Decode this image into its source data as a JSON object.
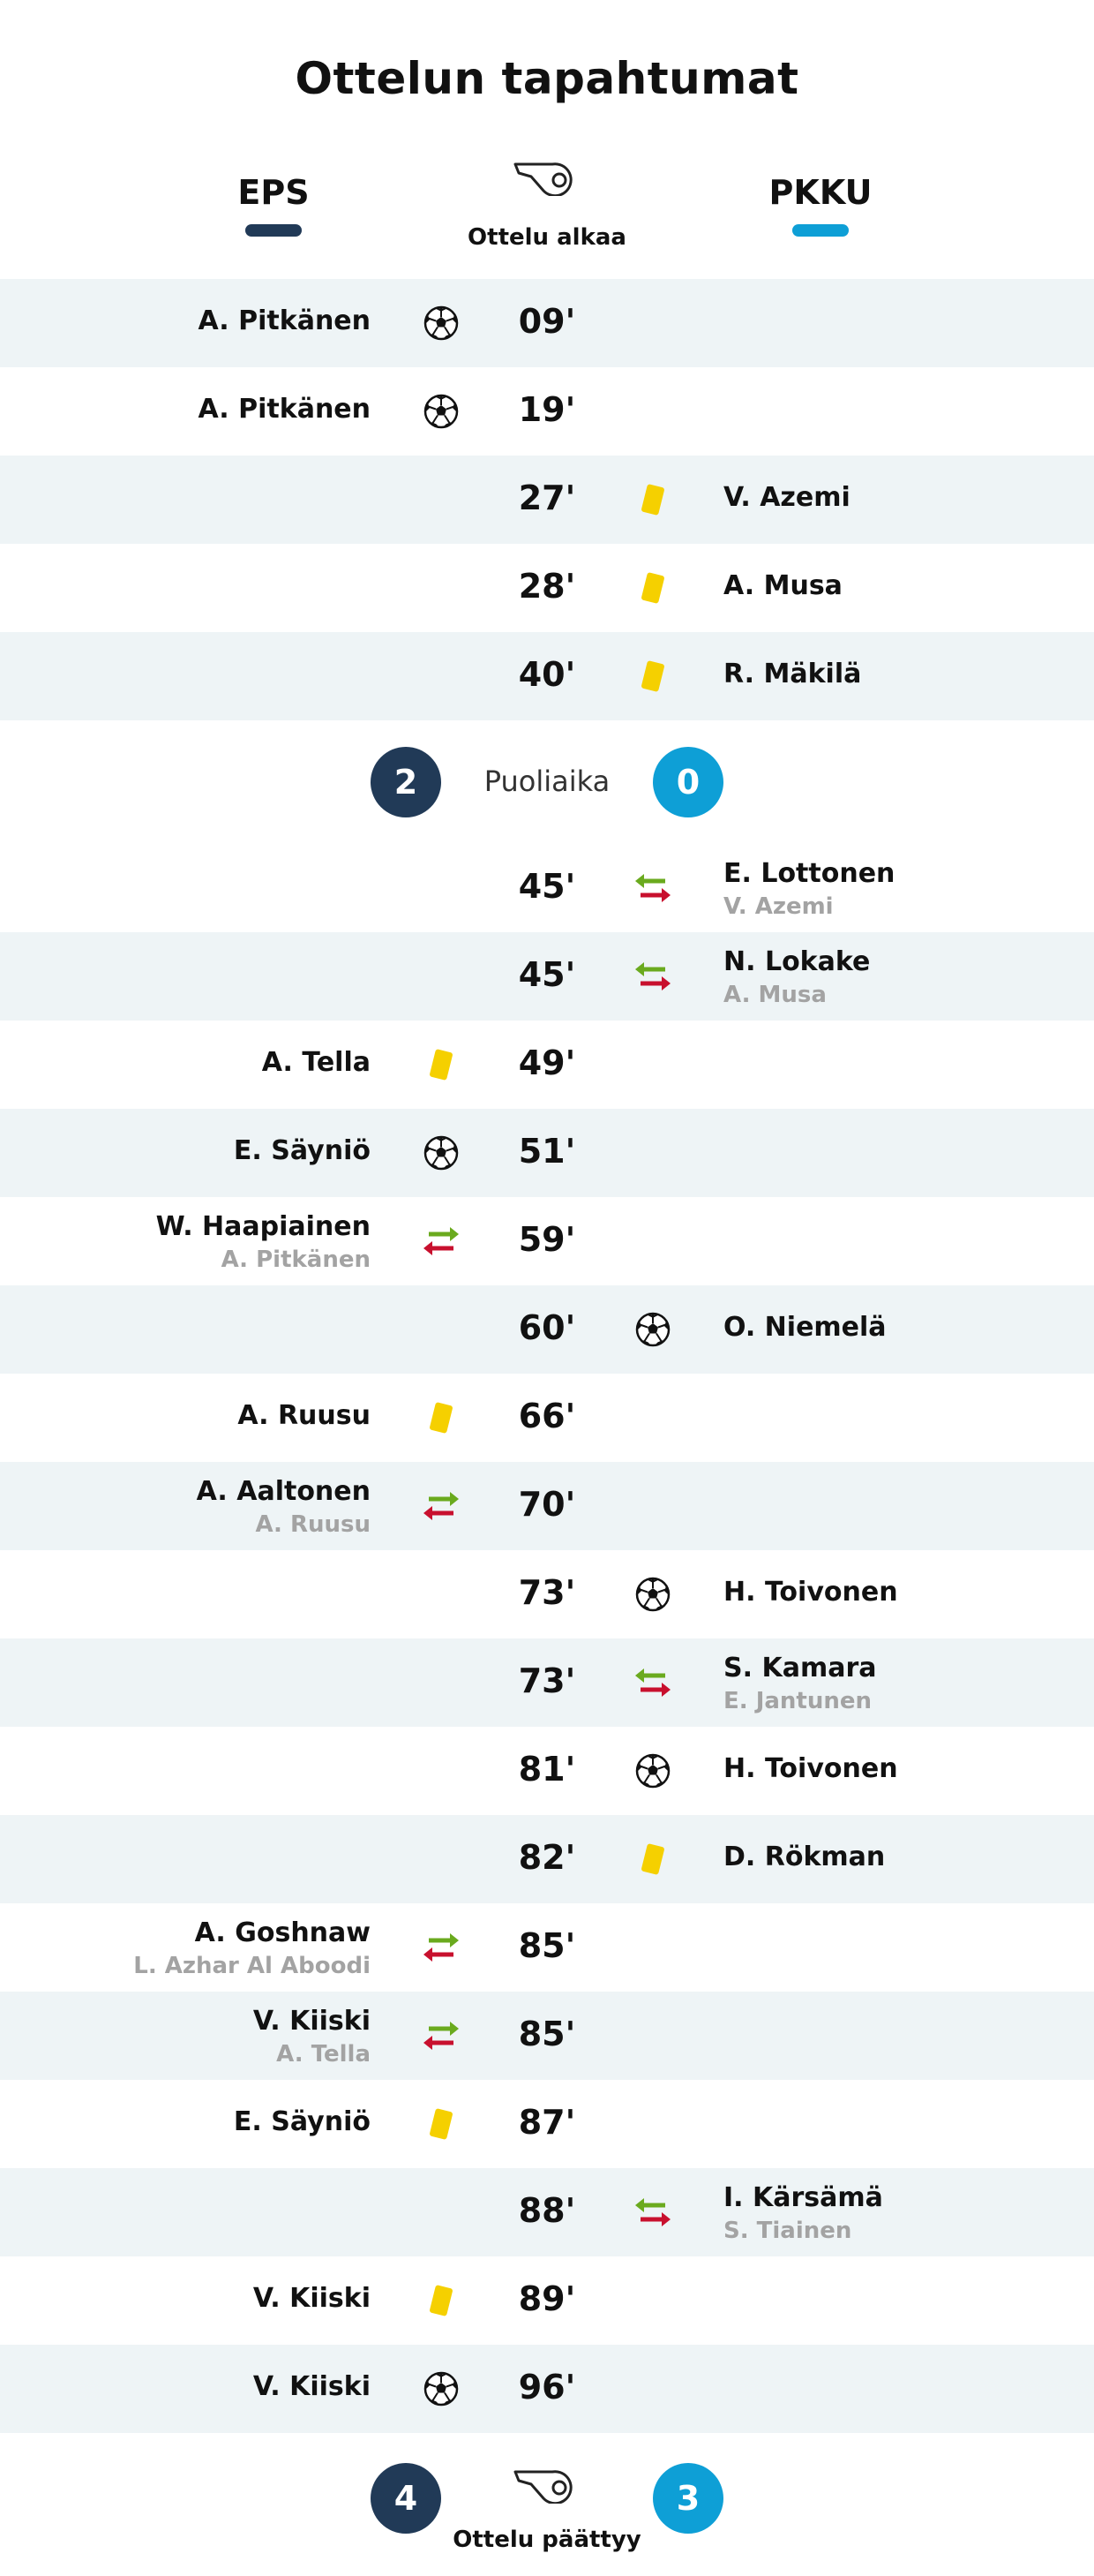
{
  "title": "Ottelun tapahtumat",
  "home_team": "EPS",
  "away_team": "PKKU",
  "kickoff_label": "Ottelu alkaa",
  "fulltime_label": "Ottelu päättyy",
  "halftime": {
    "label": "Puoliaika",
    "home": "2",
    "away": "0"
  },
  "final": {
    "home": "4",
    "away": "3"
  },
  "colors": {
    "home": "#213a57",
    "away": "#0e9fd6",
    "yellow": "#f5d000",
    "sub_in": "#6aaa1e",
    "sub_out": "#c8102e",
    "row_shade": "#eef4f6"
  },
  "events": [
    {
      "minute": "09'",
      "side": "home",
      "type": "goal",
      "player": "A. Pitkänen"
    },
    {
      "minute": "19'",
      "side": "home",
      "type": "goal",
      "player": "A. Pitkänen"
    },
    {
      "minute": "27'",
      "side": "away",
      "type": "yellow-card",
      "player": "V. Azemi"
    },
    {
      "minute": "28'",
      "side": "away",
      "type": "yellow-card",
      "player": "A. Musa"
    },
    {
      "minute": "40'",
      "side": "away",
      "type": "yellow-card",
      "player": "R. Mäkilä"
    },
    {
      "minute": "45'",
      "side": "away",
      "type": "substitution",
      "player": "E. Lottonen",
      "replaced": "V. Azemi"
    },
    {
      "minute": "45'",
      "side": "away",
      "type": "substitution",
      "player": "N. Lokake",
      "replaced": "A. Musa"
    },
    {
      "minute": "49'",
      "side": "home",
      "type": "yellow-card",
      "player": "A. Tella"
    },
    {
      "minute": "51'",
      "side": "home",
      "type": "goal",
      "player": "E. Säyniö"
    },
    {
      "minute": "59'",
      "side": "home",
      "type": "substitution",
      "player": "W. Haapiainen",
      "replaced": "A. Pitkänen"
    },
    {
      "minute": "60'",
      "side": "away",
      "type": "goal",
      "player": "O. Niemelä"
    },
    {
      "minute": "66'",
      "side": "home",
      "type": "yellow-card",
      "player": "A. Ruusu"
    },
    {
      "minute": "70'",
      "side": "home",
      "type": "substitution",
      "player": "A. Aaltonen",
      "replaced": "A. Ruusu"
    },
    {
      "minute": "73'",
      "side": "away",
      "type": "goal",
      "player": "H. Toivonen"
    },
    {
      "minute": "73'",
      "side": "away",
      "type": "substitution",
      "player": "S. Kamara",
      "replaced": "E. Jantunen"
    },
    {
      "minute": "81'",
      "side": "away",
      "type": "goal",
      "player": "H. Toivonen"
    },
    {
      "minute": "82'",
      "side": "away",
      "type": "yellow-card",
      "player": "D. Rökman"
    },
    {
      "minute": "85'",
      "side": "home",
      "type": "substitution",
      "player": "A. Goshnaw",
      "replaced": "L. Azhar Al Aboodi"
    },
    {
      "minute": "85'",
      "side": "home",
      "type": "substitution",
      "player": "V. Kiiski",
      "replaced": "A. Tella"
    },
    {
      "minute": "87'",
      "side": "home",
      "type": "yellow-card",
      "player": "E. Säyniö"
    },
    {
      "minute": "88'",
      "side": "away",
      "type": "substitution",
      "player": "I. Kärsämä",
      "replaced": "S. Tiainen"
    },
    {
      "minute": "89'",
      "side": "home",
      "type": "yellow-card",
      "player": "V. Kiiski"
    },
    {
      "minute": "96'",
      "side": "home",
      "type": "goal",
      "player": "V. Kiiski"
    }
  ]
}
